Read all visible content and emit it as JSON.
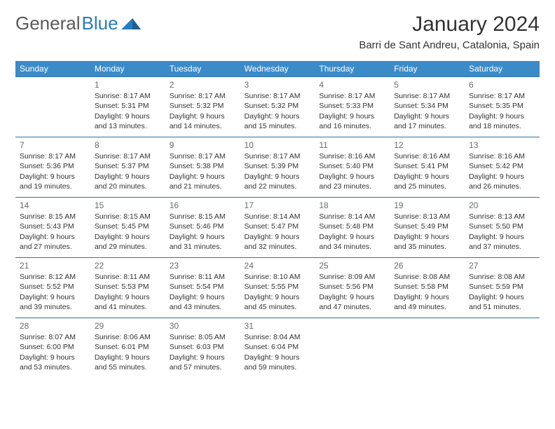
{
  "logo": {
    "text1": "General",
    "text2": "Blue"
  },
  "header": {
    "month_title": "January 2024",
    "location": "Barri de Sant Andreu, Catalonia, Spain"
  },
  "colors": {
    "header_bg": "#3b8bc9",
    "header_text": "#ffffff",
    "row_border": "#2f72aa",
    "body_text": "#333333",
    "daynum": "#6b6b6b",
    "logo_gray": "#5a5a5a",
    "logo_blue": "#2b7bbf",
    "background": "#ffffff"
  },
  "calendar": {
    "weekdays": [
      "Sunday",
      "Monday",
      "Tuesday",
      "Wednesday",
      "Thursday",
      "Friday",
      "Saturday"
    ],
    "first_weekday_index": 1,
    "num_days": 31,
    "data_template": {
      "sunrise_label": "Sunrise: ",
      "sunset_label": "Sunset: ",
      "daylight_label": "Daylight: "
    },
    "days": [
      {
        "n": 1,
        "sunrise": "8:17 AM",
        "sunset": "5:31 PM",
        "daylight": "9 hours and 13 minutes."
      },
      {
        "n": 2,
        "sunrise": "8:17 AM",
        "sunset": "5:32 PM",
        "daylight": "9 hours and 14 minutes."
      },
      {
        "n": 3,
        "sunrise": "8:17 AM",
        "sunset": "5:32 PM",
        "daylight": "9 hours and 15 minutes."
      },
      {
        "n": 4,
        "sunrise": "8:17 AM",
        "sunset": "5:33 PM",
        "daylight": "9 hours and 16 minutes."
      },
      {
        "n": 5,
        "sunrise": "8:17 AM",
        "sunset": "5:34 PM",
        "daylight": "9 hours and 17 minutes."
      },
      {
        "n": 6,
        "sunrise": "8:17 AM",
        "sunset": "5:35 PM",
        "daylight": "9 hours and 18 minutes."
      },
      {
        "n": 7,
        "sunrise": "8:17 AM",
        "sunset": "5:36 PM",
        "daylight": "9 hours and 19 minutes."
      },
      {
        "n": 8,
        "sunrise": "8:17 AM",
        "sunset": "5:37 PM",
        "daylight": "9 hours and 20 minutes."
      },
      {
        "n": 9,
        "sunrise": "8:17 AM",
        "sunset": "5:38 PM",
        "daylight": "9 hours and 21 minutes."
      },
      {
        "n": 10,
        "sunrise": "8:17 AM",
        "sunset": "5:39 PM",
        "daylight": "9 hours and 22 minutes."
      },
      {
        "n": 11,
        "sunrise": "8:16 AM",
        "sunset": "5:40 PM",
        "daylight": "9 hours and 23 minutes."
      },
      {
        "n": 12,
        "sunrise": "8:16 AM",
        "sunset": "5:41 PM",
        "daylight": "9 hours and 25 minutes."
      },
      {
        "n": 13,
        "sunrise": "8:16 AM",
        "sunset": "5:42 PM",
        "daylight": "9 hours and 26 minutes."
      },
      {
        "n": 14,
        "sunrise": "8:15 AM",
        "sunset": "5:43 PM",
        "daylight": "9 hours and 27 minutes."
      },
      {
        "n": 15,
        "sunrise": "8:15 AM",
        "sunset": "5:45 PM",
        "daylight": "9 hours and 29 minutes."
      },
      {
        "n": 16,
        "sunrise": "8:15 AM",
        "sunset": "5:46 PM",
        "daylight": "9 hours and 31 minutes."
      },
      {
        "n": 17,
        "sunrise": "8:14 AM",
        "sunset": "5:47 PM",
        "daylight": "9 hours and 32 minutes."
      },
      {
        "n": 18,
        "sunrise": "8:14 AM",
        "sunset": "5:48 PM",
        "daylight": "9 hours and 34 minutes."
      },
      {
        "n": 19,
        "sunrise": "8:13 AM",
        "sunset": "5:49 PM",
        "daylight": "9 hours and 35 minutes."
      },
      {
        "n": 20,
        "sunrise": "8:13 AM",
        "sunset": "5:50 PM",
        "daylight": "9 hours and 37 minutes."
      },
      {
        "n": 21,
        "sunrise": "8:12 AM",
        "sunset": "5:52 PM",
        "daylight": "9 hours and 39 minutes."
      },
      {
        "n": 22,
        "sunrise": "8:11 AM",
        "sunset": "5:53 PM",
        "daylight": "9 hours and 41 minutes."
      },
      {
        "n": 23,
        "sunrise": "8:11 AM",
        "sunset": "5:54 PM",
        "daylight": "9 hours and 43 minutes."
      },
      {
        "n": 24,
        "sunrise": "8:10 AM",
        "sunset": "5:55 PM",
        "daylight": "9 hours and 45 minutes."
      },
      {
        "n": 25,
        "sunrise": "8:09 AM",
        "sunset": "5:56 PM",
        "daylight": "9 hours and 47 minutes."
      },
      {
        "n": 26,
        "sunrise": "8:08 AM",
        "sunset": "5:58 PM",
        "daylight": "9 hours and 49 minutes."
      },
      {
        "n": 27,
        "sunrise": "8:08 AM",
        "sunset": "5:59 PM",
        "daylight": "9 hours and 51 minutes."
      },
      {
        "n": 28,
        "sunrise": "8:07 AM",
        "sunset": "6:00 PM",
        "daylight": "9 hours and 53 minutes."
      },
      {
        "n": 29,
        "sunrise": "8:06 AM",
        "sunset": "6:01 PM",
        "daylight": "9 hours and 55 minutes."
      },
      {
        "n": 30,
        "sunrise": "8:05 AM",
        "sunset": "6:03 PM",
        "daylight": "9 hours and 57 minutes."
      },
      {
        "n": 31,
        "sunrise": "8:04 AM",
        "sunset": "6:04 PM",
        "daylight": "9 hours and 59 minutes."
      }
    ]
  }
}
